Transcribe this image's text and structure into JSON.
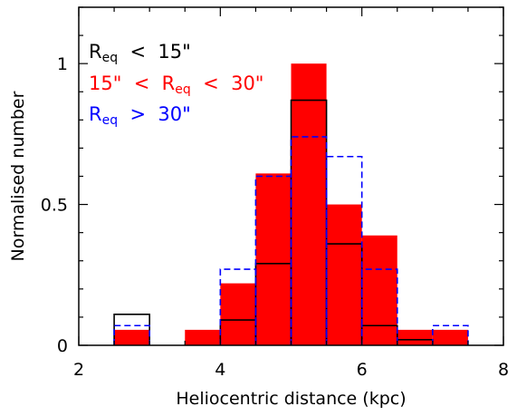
{
  "chart_data": {
    "type": "bar",
    "xlabel": "Heliocentric distance (kpc)",
    "ylabel": "Normalised number",
    "xlim": [
      2,
      8
    ],
    "ylim": [
      0,
      1.2
    ],
    "xticks": [
      2,
      4,
      6,
      8
    ],
    "yticks": [
      0,
      0.5,
      1
    ],
    "ytick_labels": [
      "0",
      "0.5",
      "1"
    ],
    "bin_width": 0.5,
    "bin_edges": [
      2.5,
      3.0,
      3.5,
      4.0,
      4.5,
      5.0,
      5.5,
      6.0,
      6.5,
      7.0,
      7.5
    ],
    "legend": {
      "position": "top-left"
    },
    "series": [
      {
        "name": "15\" < R_eq < 30\"",
        "style": "filled",
        "color": "#ff0000",
        "values": [
          0.055,
          0,
          0.055,
          0.22,
          0.61,
          1.0,
          0.5,
          0.39,
          0.055,
          0.055
        ]
      },
      {
        "name": "R_eq < 15\"",
        "style": "step-solid",
        "color": "#000000",
        "values": [
          0.11,
          0,
          0,
          0.09,
          0.29,
          0.87,
          0.36,
          0.07,
          0.02,
          0
        ]
      },
      {
        "name": "R_eq > 30\"",
        "style": "step-dashed",
        "color": "#0000ff",
        "values": [
          0.07,
          0,
          0,
          0.27,
          0.6,
          0.74,
          0.67,
          0.27,
          0,
          0.07
        ]
      }
    ],
    "legend_entries": [
      {
        "color": "#000000",
        "parts": [
          [
            "R",
            "base"
          ],
          [
            "eq",
            "sub"
          ],
          [
            "  <  15\"",
            "base"
          ]
        ]
      },
      {
        "color": "#ff0000",
        "parts": [
          [
            "15\"  <  R",
            "base"
          ],
          [
            "eq",
            "sub"
          ],
          [
            "  <  30\"",
            "base"
          ]
        ]
      },
      {
        "color": "#0000ff",
        "parts": [
          [
            "R",
            "base"
          ],
          [
            "eq",
            "sub"
          ],
          [
            "  >  30\"",
            "base"
          ]
        ]
      }
    ]
  }
}
